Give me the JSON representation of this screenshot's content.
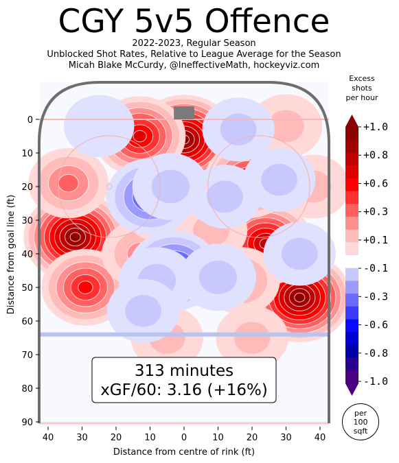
{
  "title": "CGY 5v5 Offence",
  "subtitles": [
    "2022-2023, Regular Season",
    "Unblocked Shot Rates, Relative to League Average for the Season",
    "Micah Blake McCurdy, @IneffectiveMath, hockeyviz.com"
  ],
  "info_box": {
    "minutes": "313 minutes",
    "xgf": "xGF/60: 3.16 (+16%)"
  },
  "colorbar": {
    "title": [
      "Excess",
      "shots",
      "per hour"
    ],
    "ticks": [
      "+1.0",
      "+0.8",
      "+0.6",
      "+0.3",
      "+0.1",
      "-0.1",
      "-0.3",
      "-0.6",
      "-0.8",
      "-1.0"
    ],
    "colors": [
      "#8b0000",
      "#a00000",
      "#c00000",
      "#dd0000",
      "#ff0000",
      "#ff3030",
      "#ff6060",
      "#ff8e8e",
      "#ffbaba",
      "#ffd8d8",
      "#ffffff",
      "#c8c8ff",
      "#9a9aff",
      "#6a6aff",
      "#3a3aff",
      "#0a0aff",
      "#0000d0",
      "#0000a8",
      "#2a0090",
      "#4b0082"
    ]
  },
  "per_area": [
    "per",
    "100",
    "sqft"
  ],
  "colors": {
    "boards": "#6e6e6e",
    "goal_line": "#f4b8b8",
    "blue_line": "#b8c4ee",
    "net": "#7a7a7a"
  },
  "chart_data": {
    "type": "heatmap",
    "title": "CGY 5v5 Offence",
    "xlabel": "Distance from centre of rink (ft)",
    "ylabel": "Distance from goal line (ft)",
    "xlim": [
      -42.5,
      42.5
    ],
    "ylim": [
      90,
      -11
    ],
    "x_tick_values": [
      -40,
      -30,
      -20,
      -10,
      0,
      10,
      20,
      30,
      40
    ],
    "x_tick_labels": [
      "40",
      "30",
      "20",
      "10",
      "0",
      "10",
      "20",
      "30",
      "40"
    ],
    "y_tick_values": [
      0,
      10,
      20,
      30,
      40,
      50,
      60,
      70,
      80,
      90
    ],
    "y_tick_labels": [
      "0",
      "10",
      "20",
      "30",
      "40",
      "50",
      "60",
      "70",
      "80",
      "90"
    ],
    "colorbar_range": [
      -1.0,
      1.0
    ],
    "hotspots": [
      {
        "x": 0,
        "y": 6,
        "value": 1.0
      },
      {
        "x": -13,
        "y": 5,
        "value": 0.7
      },
      {
        "x": -32,
        "y": 35,
        "value": 1.0
      },
      {
        "x": 34,
        "y": 53,
        "value": 1.0
      },
      {
        "x": 24,
        "y": 37,
        "value": 0.8
      },
      {
        "x": 19,
        "y": 18,
        "value": 0.6
      },
      {
        "x": -34,
        "y": 19,
        "value": 0.4
      },
      {
        "x": -29,
        "y": 50,
        "value": 0.6
      },
      {
        "x": -13,
        "y": 40,
        "value": 0.3
      },
      {
        "x": 38,
        "y": 20,
        "value": 0.2
      },
      {
        "x": 8,
        "y": 33,
        "value": 0.2
      },
      {
        "x": 17,
        "y": 48,
        "value": 0.3
      },
      {
        "x": -5,
        "y": 65,
        "value": 0.2
      },
      {
        "x": 20,
        "y": 65,
        "value": 0.2
      },
      {
        "x": 30,
        "y": 2,
        "value": 0.2
      },
      {
        "x": -7,
        "y": 27,
        "value": 0.2
      },
      {
        "x": -10,
        "y": 23,
        "value": -0.6
      },
      {
        "x": -4,
        "y": 20,
        "value": -0.3
      },
      {
        "x": -3,
        "y": 45,
        "value": -0.7
      },
      {
        "x": -8,
        "y": 48,
        "value": -0.3
      },
      {
        "x": 10,
        "y": 47,
        "value": -0.3
      },
      {
        "x": 12,
        "y": 23,
        "value": -0.2
      },
      {
        "x": 34,
        "y": 40,
        "value": -0.2
      },
      {
        "x": 28,
        "y": 18,
        "value": -0.2
      },
      {
        "x": 16,
        "y": 3,
        "value": -0.2
      },
      {
        "x": -25,
        "y": 2,
        "value": -0.15
      },
      {
        "x": -12,
        "y": 57,
        "value": -0.2
      }
    ]
  }
}
